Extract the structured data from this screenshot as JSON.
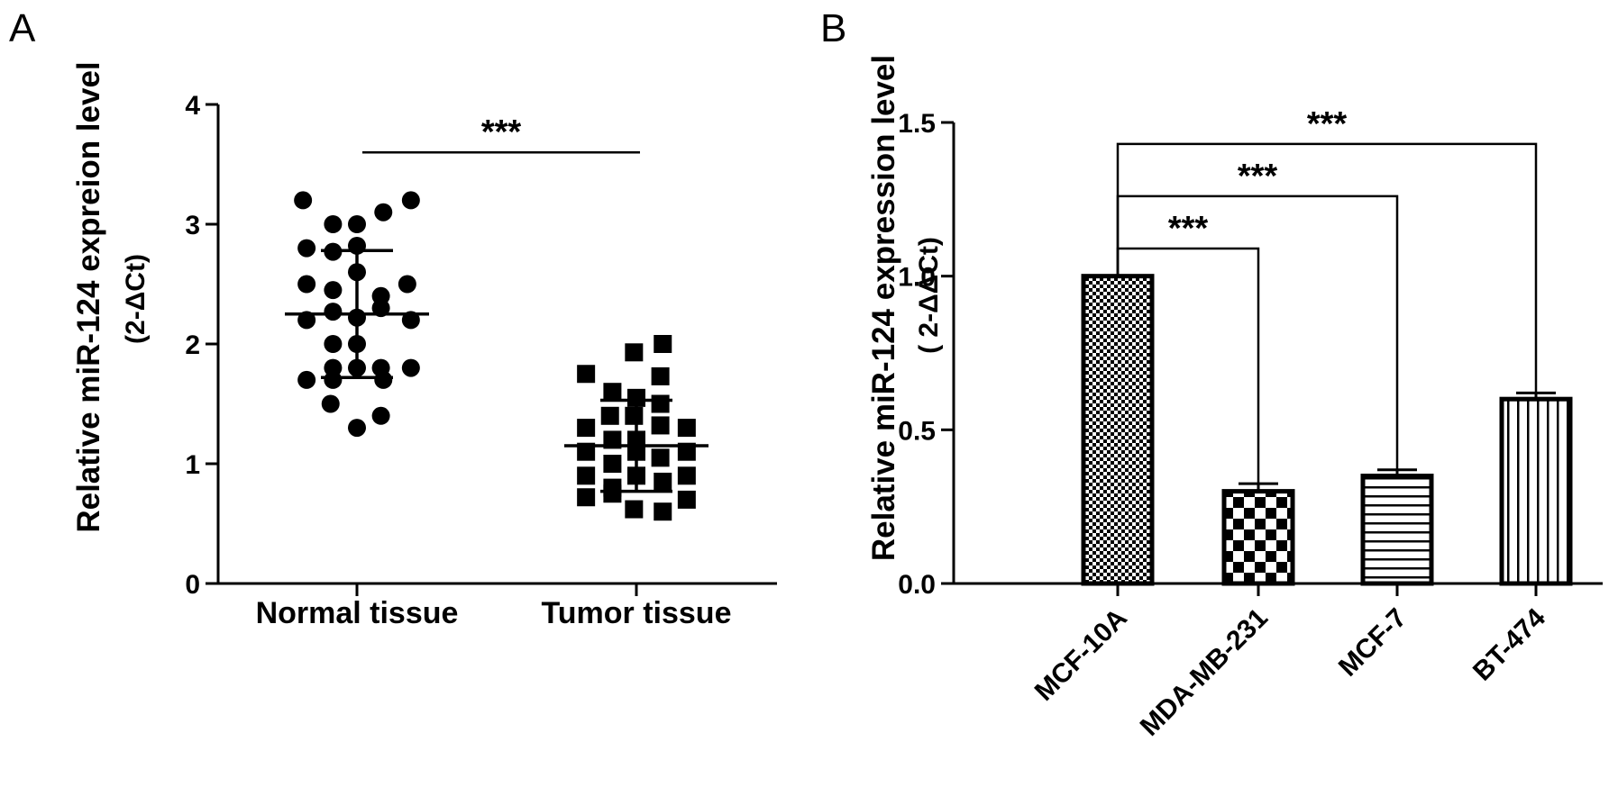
{
  "panels": {
    "a_letter": "A",
    "b_letter": "B"
  },
  "chart_data": [
    {
      "type": "scatter",
      "panel": "A",
      "ylabel": "Relative miR-124 expreion level",
      "ylabel_sub": "(2-ΔCt)",
      "ylim": [
        0,
        4
      ],
      "yticks": [
        "0",
        "1",
        "2",
        "3",
        "4"
      ],
      "categories": [
        "Normal tissue",
        "Tumor tissue"
      ],
      "series": [
        {
          "category": "Normal tissue",
          "marker": "circle",
          "points": [
            {
              "x": -0.45,
              "y": 3.2
            },
            {
              "x": 0.45,
              "y": 3.2
            },
            {
              "x": -0.2,
              "y": 3.0
            },
            {
              "x": 0.0,
              "y": 3.0
            },
            {
              "x": 0.22,
              "y": 3.1
            },
            {
              "x": -0.42,
              "y": 2.8
            },
            {
              "x": -0.2,
              "y": 2.77
            },
            {
              "x": 0.0,
              "y": 2.82
            },
            {
              "x": 0.0,
              "y": 2.6
            },
            {
              "x": -0.42,
              "y": 2.5
            },
            {
              "x": -0.2,
              "y": 2.45
            },
            {
              "x": 0.2,
              "y": 2.4
            },
            {
              "x": 0.42,
              "y": 2.5
            },
            {
              "x": -0.42,
              "y": 2.2
            },
            {
              "x": -0.2,
              "y": 2.27
            },
            {
              "x": 0.0,
              "y": 2.22
            },
            {
              "x": 0.2,
              "y": 2.3
            },
            {
              "x": 0.45,
              "y": 2.2
            },
            {
              "x": -0.2,
              "y": 2.0
            },
            {
              "x": 0.0,
              "y": 2.0
            },
            {
              "x": -0.42,
              "y": 1.7
            },
            {
              "x": -0.2,
              "y": 1.8
            },
            {
              "x": 0.0,
              "y": 1.8
            },
            {
              "x": 0.2,
              "y": 1.8
            },
            {
              "x": 0.45,
              "y": 1.8
            },
            {
              "x": -0.2,
              "y": 1.7
            },
            {
              "x": 0.22,
              "y": 1.7
            },
            {
              "x": -0.22,
              "y": 1.5
            },
            {
              "x": 0.2,
              "y": 1.4
            },
            {
              "x": 0.0,
              "y": 1.3
            }
          ],
          "mean": 2.25,
          "sd": 0.53
        },
        {
          "category": "Tumor tissue",
          "marker": "square",
          "points": [
            {
              "x": 0.22,
              "y": 2.0
            },
            {
              "x": -0.02,
              "y": 1.93
            },
            {
              "x": -0.42,
              "y": 1.75
            },
            {
              "x": 0.2,
              "y": 1.73
            },
            {
              "x": -0.2,
              "y": 1.6
            },
            {
              "x": 0.0,
              "y": 1.55
            },
            {
              "x": 0.2,
              "y": 1.5
            },
            {
              "x": -0.22,
              "y": 1.4
            },
            {
              "x": -0.02,
              "y": 1.4
            },
            {
              "x": -0.42,
              "y": 1.3
            },
            {
              "x": 0.2,
              "y": 1.32
            },
            {
              "x": 0.42,
              "y": 1.3
            },
            {
              "x": -0.2,
              "y": 1.2
            },
            {
              "x": 0.0,
              "y": 1.2
            },
            {
              "x": -0.42,
              "y": 1.1
            },
            {
              "x": -0.2,
              "y": 1.0
            },
            {
              "x": 0.0,
              "y": 1.1
            },
            {
              "x": 0.2,
              "y": 1.05
            },
            {
              "x": 0.42,
              "y": 1.1
            },
            {
              "x": -0.42,
              "y": 0.9
            },
            {
              "x": -0.2,
              "y": 0.8
            },
            {
              "x": 0.0,
              "y": 0.9
            },
            {
              "x": 0.22,
              "y": 0.85
            },
            {
              "x": 0.42,
              "y": 0.9
            },
            {
              "x": -0.42,
              "y": 0.72
            },
            {
              "x": -0.2,
              "y": 0.75
            },
            {
              "x": 0.42,
              "y": 0.7
            },
            {
              "x": -0.02,
              "y": 0.62
            },
            {
              "x": 0.22,
              "y": 0.6
            }
          ],
          "mean": 1.15,
          "sd": 0.38
        }
      ],
      "significance": [
        {
          "from": "Normal tissue",
          "to": "Tumor tissue",
          "label": "***"
        }
      ]
    },
    {
      "type": "bar",
      "panel": "B",
      "ylabel": "Relative miR-124 expression level",
      "ylabel_sub": "( 2-ΔΔCt)",
      "ylim": [
        0,
        1.5
      ],
      "yticks": [
        "0.0",
        "0.5",
        "1.0",
        "1.5"
      ],
      "categories": [
        "MCF-10A",
        "MDA-MB-231",
        "MCF-7",
        "BT-474"
      ],
      "values": [
        1.0,
        0.3,
        0.35,
        0.6
      ],
      "errors": [
        0.0,
        0.025,
        0.02,
        0.02
      ],
      "patterns": [
        "fine-checker",
        "coarse-checker",
        "horizontal-lines",
        "vertical-lines"
      ],
      "significance": [
        {
          "from": "MCF-10A",
          "to": "MDA-MB-231",
          "label": "***"
        },
        {
          "from": "MCF-10A",
          "to": "MCF-7",
          "label": "***"
        },
        {
          "from": "MCF-10A",
          "to": "BT-474",
          "label": "***"
        }
      ]
    }
  ]
}
